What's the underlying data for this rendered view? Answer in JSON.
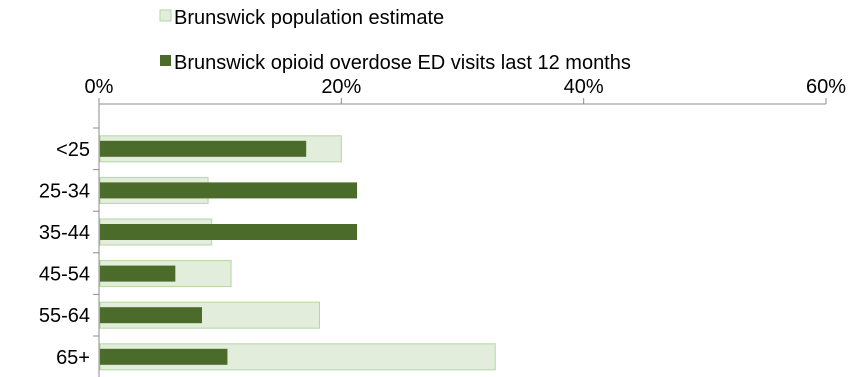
{
  "chart_data": {
    "type": "bar",
    "orientation": "horizontal",
    "categories": [
      "<25",
      "25-34",
      "35-44",
      "45-54",
      "55-64",
      "65+"
    ],
    "series": [
      {
        "name": "Brunswick population estimate",
        "values": [
          20.0,
          9.0,
          9.3,
          10.9,
          18.2,
          32.7
        ],
        "color": "#e2eedb",
        "stroke": "#b5d6a0"
      },
      {
        "name": "Brunswick opioid overdose ED visits last 12 months",
        "values": [
          17.1,
          21.3,
          21.3,
          6.3,
          8.5,
          10.6
        ],
        "color": "#4a6b2a"
      }
    ],
    "xlim": [
      0,
      60
    ],
    "xticks": [
      0,
      20,
      40,
      60
    ],
    "tick_format": "{v}%",
    "axis_position": "top",
    "legend_position": "top",
    "grid": false
  }
}
